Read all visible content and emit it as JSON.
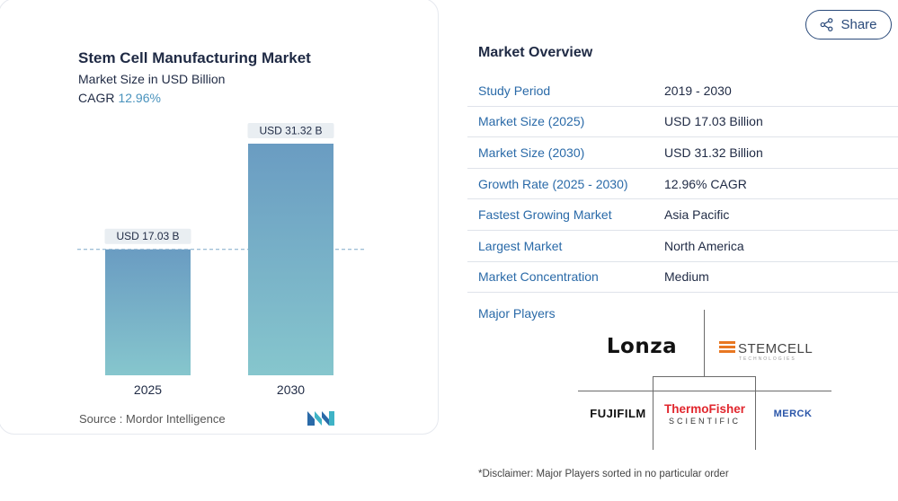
{
  "share": {
    "label": "Share",
    "icon": "share-icon"
  },
  "chart": {
    "title": "Stem Cell Manufacturing Market",
    "subtitle": "Market Size in USD Billion",
    "cagr_label": "CAGR",
    "cagr_value": "12.96%",
    "source": "Source :  Mordor Intelligence",
    "bar_color_top": "#6a9cc2",
    "bar_color_bottom": "#86c6cd"
  },
  "chart_data": {
    "type": "bar",
    "categories": [
      "2025",
      "2030"
    ],
    "values": [
      17.03,
      31.32
    ],
    "data_labels": [
      "USD 17.03 B",
      "USD 31.32 B"
    ],
    "title": "Stem Cell Manufacturing Market",
    "subtitle": "Market Size in USD Billion",
    "ylim": [
      0,
      31.32
    ],
    "grid": false,
    "reference_line": "dashed line at 2025 value"
  },
  "overview": {
    "title": "Market Overview",
    "rows": [
      {
        "label": "Study Period",
        "value": "2019 - 2030"
      },
      {
        "label": "Market Size (2025)",
        "value": "USD 17.03 Billion"
      },
      {
        "label": "Market Size (2030)",
        "value": "USD 31.32 Billion"
      },
      {
        "label": "Growth Rate (2025 - 2030)",
        "value": "12.96% CAGR"
      },
      {
        "label": "Fastest Growing Market",
        "value": "Asia Pacific"
      },
      {
        "label": "Largest Market",
        "value": "North America"
      },
      {
        "label": "Market Concentration",
        "value": "Medium"
      }
    ]
  },
  "players": {
    "title": "Major Players",
    "logos": {
      "lonza": "Lonza",
      "stemcell": "STEMCELL",
      "stemcell_sub": "TECHNOLOGIES",
      "fujifilm": "FUJIFILM",
      "thermo_a": "ThermoFisher",
      "thermo_b": "SCIENTIFIC",
      "merck": "MERCK"
    }
  },
  "disclaimer": "*Disclaimer: Major Players sorted in no particular order"
}
